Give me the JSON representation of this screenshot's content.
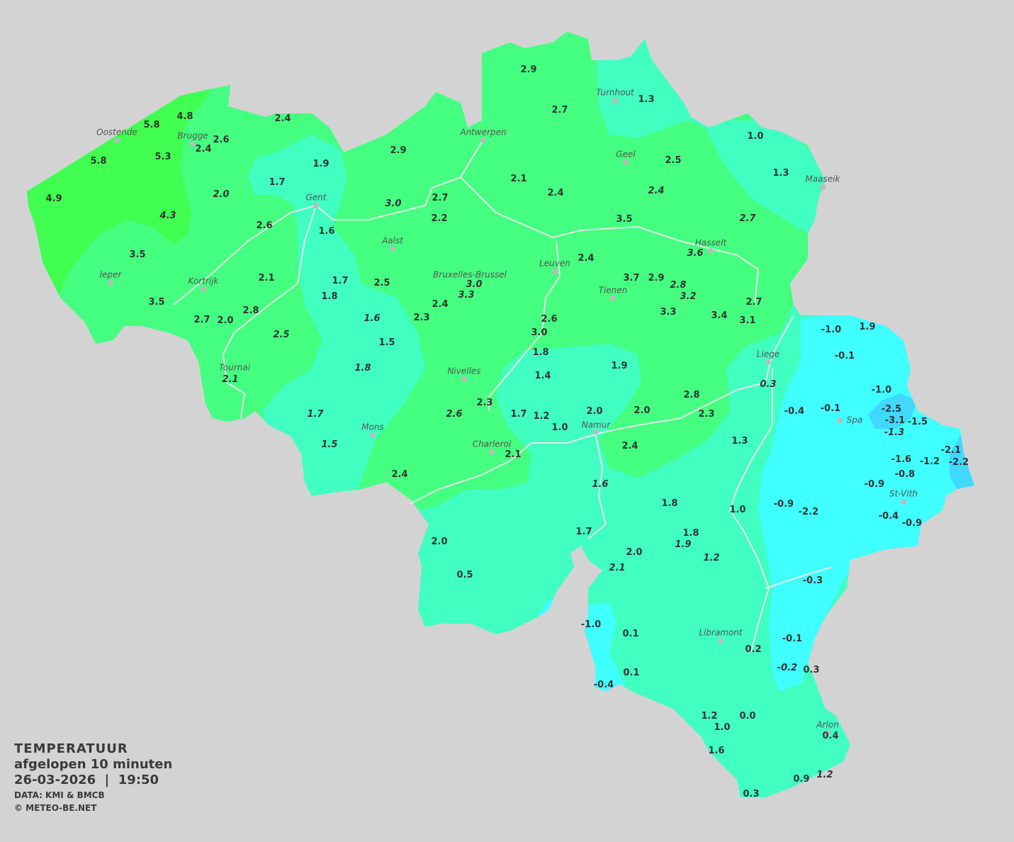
{
  "legend": {
    "title": "TEMPERATUUR",
    "period": "afgelopen 10 minuten",
    "datetime": "26-03-2026  |  19:50",
    "source": "DATA: KMI & BMCB",
    "copyright": "© METEO-BE.NET"
  },
  "colors": {
    "background": "#d3d3d3",
    "bright_green": "#40ff50",
    "green": "#44ff80",
    "teal": "#40ffc0",
    "cyan": "#40ffff",
    "blue": "#40d8ff",
    "river": "#e6e6e6"
  },
  "cities": [
    "Oostende",
    "Brugge",
    "Gent",
    "Antwerpen",
    "Turnhout",
    "Geel",
    "Maaseik",
    "Aalst",
    "Kortrijk",
    "Ieper",
    "Bruxelles-Brussel",
    "Leuven",
    "Tienen",
    "Hasselt",
    "Liege",
    "Tournai",
    "Nivelles",
    "Mons",
    "Charleroi",
    "Namur",
    "Spa",
    "St-Vith",
    "Libramont",
    "Arlon"
  ],
  "stations": [
    {
      "v": "4.8"
    },
    {
      "v": "5.8"
    },
    {
      "v": "5.8"
    },
    {
      "v": "5.3"
    },
    {
      "v": "4.9"
    },
    {
      "v": "4.3",
      "i": true
    },
    {
      "v": "2.4"
    },
    {
      "v": "2.6"
    },
    {
      "v": "2.4"
    },
    {
      "v": "2.0",
      "i": true
    },
    {
      "v": "1.9"
    },
    {
      "v": "1.7"
    },
    {
      "v": "2.6"
    },
    {
      "v": "1.6"
    },
    {
      "v": "3.5"
    },
    {
      "v": "3.5"
    },
    {
      "v": "2.1"
    },
    {
      "v": "1.7"
    },
    {
      "v": "1.8"
    },
    {
      "v": "2.8"
    },
    {
      "v": "2.7"
    },
    {
      "v": "2.0"
    },
    {
      "v": "2.5",
      "i": true
    },
    {
      "v": "1.6",
      "i": true
    },
    {
      "v": "1.5"
    },
    {
      "v": "1.8",
      "i": true
    },
    {
      "v": "2.1",
      "i": true
    },
    {
      "v": "1.7",
      "i": true
    },
    {
      "v": "1.5",
      "i": true
    },
    {
      "v": "2.9"
    },
    {
      "v": "2.9"
    },
    {
      "v": "2.7"
    },
    {
      "v": "1.3"
    },
    {
      "v": "1.0"
    },
    {
      "v": "1.3"
    },
    {
      "v": "2.5"
    },
    {
      "v": "2.1"
    },
    {
      "v": "2.4"
    },
    {
      "v": "2.4",
      "i": true
    },
    {
      "v": "2.7"
    },
    {
      "v": "3.0",
      "i": true
    },
    {
      "v": "2.2"
    },
    {
      "v": "3.5"
    },
    {
      "v": "2.7",
      "i": true
    },
    {
      "v": "3.6",
      "i": true
    },
    {
      "v": "2.4"
    },
    {
      "v": "3.7"
    },
    {
      "v": "2.9"
    },
    {
      "v": "2.8",
      "i": true
    },
    {
      "v": "3.2",
      "i": true
    },
    {
      "v": "3.0",
      "i": true
    },
    {
      "v": "3.3",
      "i": true
    },
    {
      "v": "2.5"
    },
    {
      "v": "2.4"
    },
    {
      "v": "2.3"
    },
    {
      "v": "3.3"
    },
    {
      "v": "3.4"
    },
    {
      "v": "2.7"
    },
    {
      "v": "3.1"
    },
    {
      "v": "2.6"
    },
    {
      "v": "3.0"
    },
    {
      "v": "1.8"
    },
    {
      "v": "1.9"
    },
    {
      "v": "1.4"
    },
    {
      "v": "0.3",
      "i": true
    },
    {
      "v": "2.3"
    },
    {
      "v": "2.6",
      "i": true
    },
    {
      "v": "1.7"
    },
    {
      "v": "1.2"
    },
    {
      "v": "1.0"
    },
    {
      "v": "2.0"
    },
    {
      "v": "2.0"
    },
    {
      "v": "2.8"
    },
    {
      "v": "2.3"
    },
    {
      "v": "1.3"
    },
    {
      "v": "2.4"
    },
    {
      "v": "2.1"
    },
    {
      "v": "2.4"
    },
    {
      "v": "1.6",
      "i": true
    },
    {
      "v": "1.8"
    },
    {
      "v": "1.0"
    },
    {
      "v": "1.7"
    },
    {
      "v": "1.8"
    },
    {
      "v": "1.9",
      "i": true
    },
    {
      "v": "1.2",
      "i": true
    },
    {
      "v": "2.0"
    },
    {
      "v": "2.1",
      "i": true
    },
    {
      "v": "2.0"
    },
    {
      "v": "0.5"
    },
    {
      "v": "-1.0"
    },
    {
      "v": "0.1"
    },
    {
      "v": "0.1"
    },
    {
      "v": "-0.4"
    },
    {
      "v": "0.2"
    },
    {
      "v": "-0.1"
    },
    {
      "v": "-0.2",
      "i": true
    },
    {
      "v": "0.3"
    },
    {
      "v": "1.2"
    },
    {
      "v": "1.0"
    },
    {
      "v": "0.0"
    },
    {
      "v": "0.4"
    },
    {
      "v": "1.6"
    },
    {
      "v": "0.9"
    },
    {
      "v": "1.2",
      "i": true
    },
    {
      "v": "0.3"
    },
    {
      "v": "-0.3"
    },
    {
      "v": "-1.0"
    },
    {
      "v": "1.9"
    },
    {
      "v": "-0.1"
    },
    {
      "v": "-1.0"
    },
    {
      "v": "-0.4"
    },
    {
      "v": "-0.1"
    },
    {
      "v": "-2.5"
    },
    {
      "v": "-3.1"
    },
    {
      "v": "-1.5"
    },
    {
      "v": "-1.3",
      "i": true
    },
    {
      "v": "-1.6"
    },
    {
      "v": "-1.2"
    },
    {
      "v": "-2.1"
    },
    {
      "v": "-2.2"
    },
    {
      "v": "-0.8"
    },
    {
      "v": "-0.9"
    },
    {
      "v": "-0.9"
    },
    {
      "v": "-2.2"
    },
    {
      "v": "-0.4"
    },
    {
      "v": "-0.9"
    }
  ]
}
